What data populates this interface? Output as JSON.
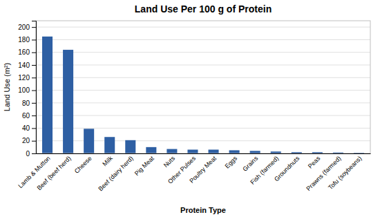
{
  "chart_data": {
    "type": "bar",
    "title": "Land Use Per 100 g of Protein",
    "xlabel": "Protein Type",
    "ylabel": "Land Use (m²)",
    "categories": [
      "Lamb & Mutton",
      "Beef (beef herd)",
      "Cheese",
      "Milk",
      "Beef (dairy herd)",
      "Pig Meat",
      "Nuts",
      "Other Pulses",
      "Poultry Meat",
      "Eggs",
      "Grains",
      "Fish (farmed)",
      "Groundnuts",
      "Peas",
      "Prawns (farmed)",
      "Tofu (soybeans)"
    ],
    "values": [
      185,
      164,
      39,
      26,
      21,
      10,
      7,
      6,
      6,
      5,
      4,
      3,
      2,
      2,
      1.5,
      1
    ],
    "color": "#2E5FA3",
    "ylim": [
      0,
      210
    ],
    "yticks": [
      0,
      20,
      40,
      60,
      80,
      100,
      120,
      140,
      160,
      180,
      200
    ],
    "grid": true
  }
}
